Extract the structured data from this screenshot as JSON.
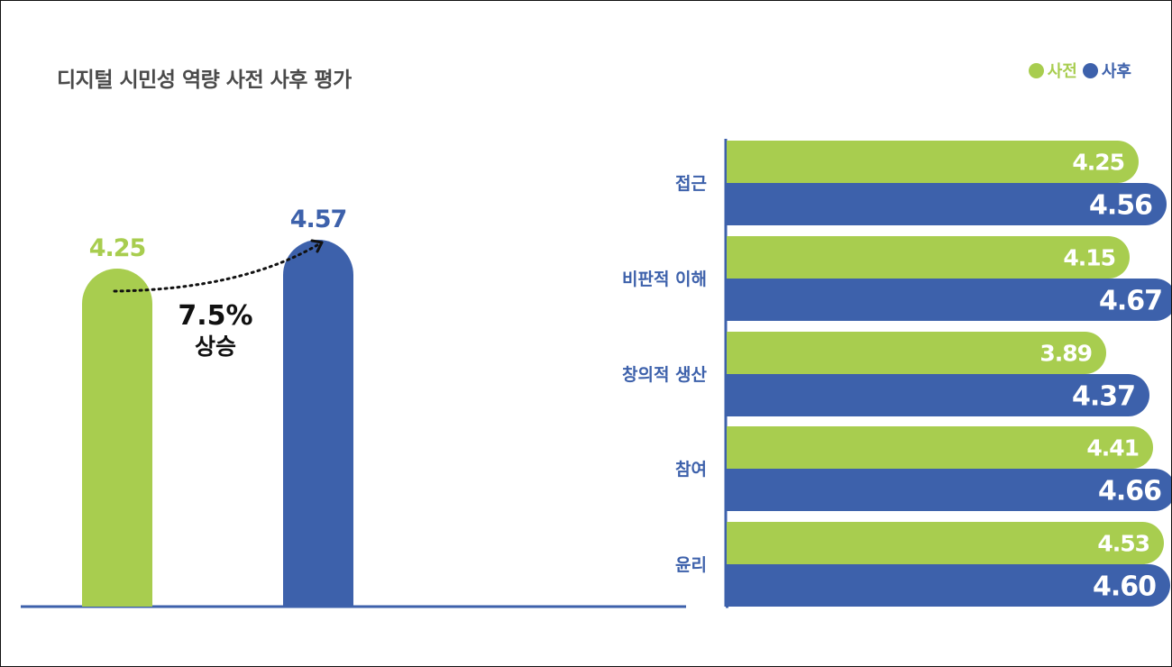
{
  "colors": {
    "pre": "#a8cd4f",
    "post": "#3d61ab",
    "axis": "#3d61ab",
    "label": "#3d61ab",
    "title": "#4a4a4a"
  },
  "chart_data": [
    {
      "type": "bar",
      "title": "디지털 시민성 역량 사전 사후 평가",
      "legend": {
        "position": "top-right",
        "items": [
          "사전",
          "사후"
        ]
      },
      "categories": [
        "사전",
        "사후"
      ],
      "values": [
        4.25,
        4.57
      ],
      "value_labels": [
        "4.25",
        "4.57"
      ],
      "annotation": {
        "line1": "7.5%",
        "line2": "상승"
      },
      "ylim": [
        0,
        5
      ],
      "grid": false
    },
    {
      "type": "bar",
      "orientation": "horizontal",
      "categories": [
        "접근",
        "비판적 이해",
        "창의적 생산",
        "참여",
        "윤리"
      ],
      "series": [
        {
          "name": "사전",
          "values": [
            4.25,
            4.15,
            3.89,
            4.41,
            4.53
          ],
          "labels": [
            "4.25",
            "4.15",
            "3.89",
            "4.41",
            "4.53"
          ]
        },
        {
          "name": "사후",
          "values": [
            4.56,
            4.67,
            4.37,
            4.66,
            4.6
          ],
          "labels": [
            "4.56",
            "4.67",
            "4.37",
            "4.66",
            "4.60"
          ]
        }
      ],
      "xlim": [
        0,
        5
      ],
      "grid": false
    }
  ]
}
